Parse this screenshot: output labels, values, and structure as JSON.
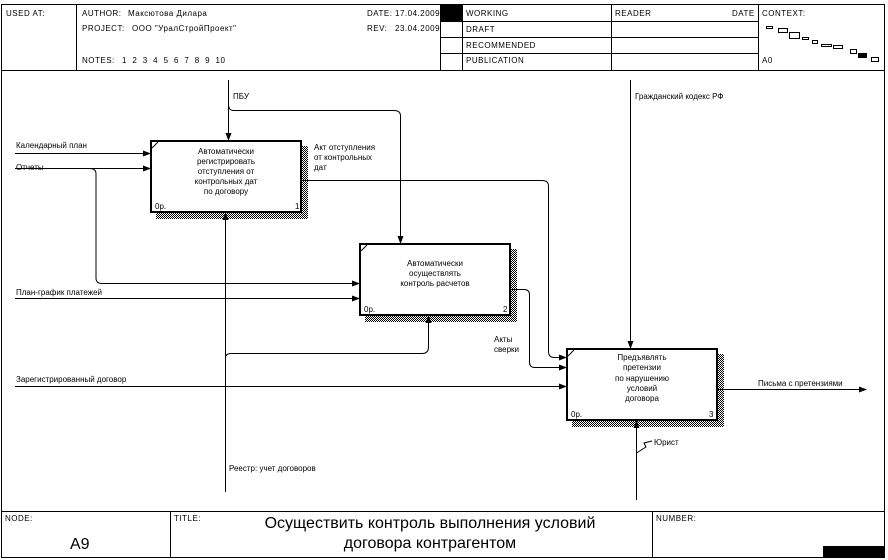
{
  "header": {
    "used_at": "USED AT:",
    "author_label": "AUTHOR:",
    "author": "Максютова Дилара",
    "project_label": "PROJECT:",
    "project": "ООО \"УралСтройПроект\"",
    "date_label": "DATE:",
    "date": "17.04.2009",
    "rev_label": "REV:",
    "rev": "23.04.2009",
    "notes_label": "NOTES:",
    "notes": "1  2  3  4  5  6  7  8  9  10",
    "status": [
      "WORKING",
      "DRAFT",
      "RECOMMENDED",
      "PUBLICATION"
    ],
    "reader": "READER",
    "reader_date": "DATE",
    "context": "CONTEXT:",
    "context_node": "A0"
  },
  "boxes": [
    {
      "lines": [
        "Автоматически",
        "регистрировать",
        "отступления от",
        "контрольных  дат",
        "по договору"
      ],
      "cost": "0р.",
      "num": "1"
    },
    {
      "lines": [
        "Автоматически",
        "осуществлять",
        "контроль расчетов"
      ],
      "cost": "0р.",
      "num": "2"
    },
    {
      "lines": [
        "Предъявлять",
        "претензии",
        "по нарушению",
        "условий",
        "договора"
      ],
      "cost": "0р.",
      "num": "3"
    }
  ],
  "arrows": {
    "calendar": "Календарный план",
    "reports": "Отчеты",
    "schedule": "План-график платежей",
    "contract": "Зарегистрированный договор",
    "pbu": "ПБУ",
    "civil_code": "Гражданский кодекс РФ",
    "deviation_act": [
      "Акт отступления",
      "от контрольных",
      "дат"
    ],
    "reconciliation": [
      "Акты",
      "сверки"
    ],
    "letters": "Письма с претензиями",
    "lawyer": "Юрист",
    "registry": "Реестр: учет договоров"
  },
  "footer": {
    "node_label": "NODE:",
    "node": "A9",
    "title_label": "TITLE:",
    "title": [
      "Осуществить  контроль выполнения условий",
      "договора контрагентом"
    ],
    "number_label": "NUMBER:"
  }
}
